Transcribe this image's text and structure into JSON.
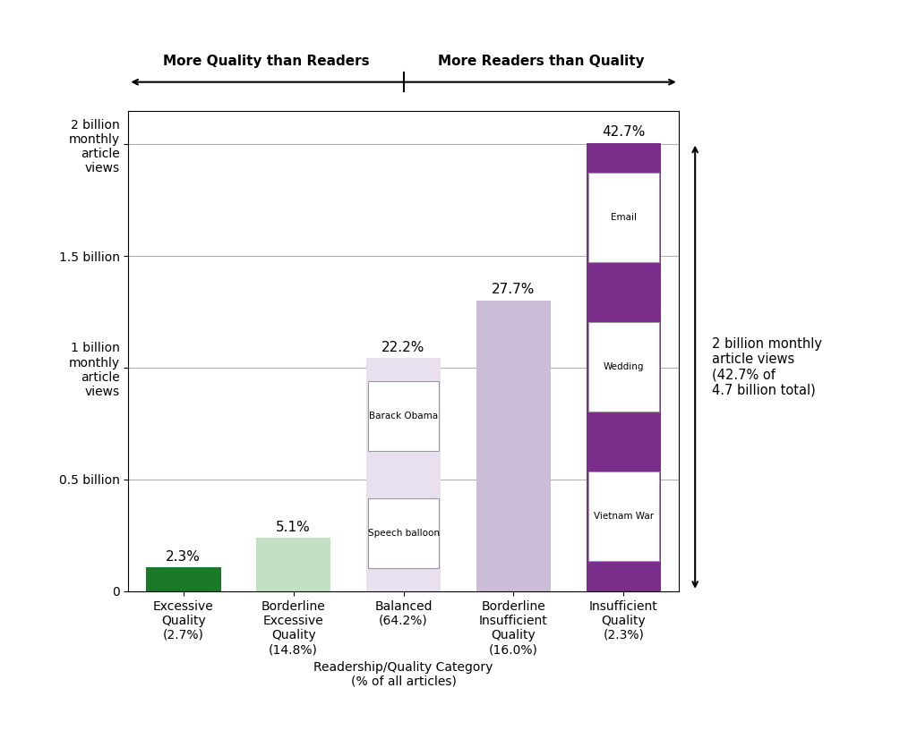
{
  "chart_data": {
    "type": "bar",
    "categories": [
      "Excessive\nQuality\n(2.7%)",
      "Borderline\nExcessive\nQuality\n(14.8%)",
      "Balanced\n(64.2%)",
      "Borderline\nInsufficient\nQuality\n(16.0%)",
      "Insufficient\nQuality\n(2.3%)"
    ],
    "values": [
      0.108,
      0.24,
      1.044,
      1.302,
      2.007
    ],
    "colors": [
      "#1a7a2a",
      "#c2e0c2",
      "#e8e0ef",
      "#cbbcd8",
      "#7b2d8b"
    ],
    "share_labels": [
      "2.3%",
      "5.1%",
      "22.2%",
      "27.7%",
      "42.7%"
    ],
    "xlabel": "Readership/Quality Category\n(% of all articles)",
    "ylim": [
      0,
      2.15
    ],
    "yticks": [
      0,
      {
        "value": 0.5,
        "label": "0.5 billion"
      },
      {
        "value": 1.0,
        "label": "1 billion\nmonthly\narticle\nviews"
      },
      {
        "value": 1.5,
        "label": "1.5 billion"
      },
      {
        "value": 2.0,
        "label": "2 billion\nmonthly\narticle\nviews"
      }
    ],
    "grid": true,
    "annotations": {
      "top_left": "More Quality than Readers",
      "top_right": "More Readers than Quality",
      "right": {
        "category": "Insufficient\nQuality\n(2.3%)",
        "text": "2 billion monthly\narticle views\n(42.7% of\n4.7 billion total)"
      }
    },
    "screenshots": [
      {
        "category": "Balanced\n(64.2%)",
        "labels": [
          "Barack Obama",
          "Speech balloon"
        ]
      },
      {
        "category": "Insufficient\nQuality\n(2.3%)",
        "labels": [
          "Email",
          "Wedding",
          "Vietnam War"
        ]
      }
    ]
  }
}
